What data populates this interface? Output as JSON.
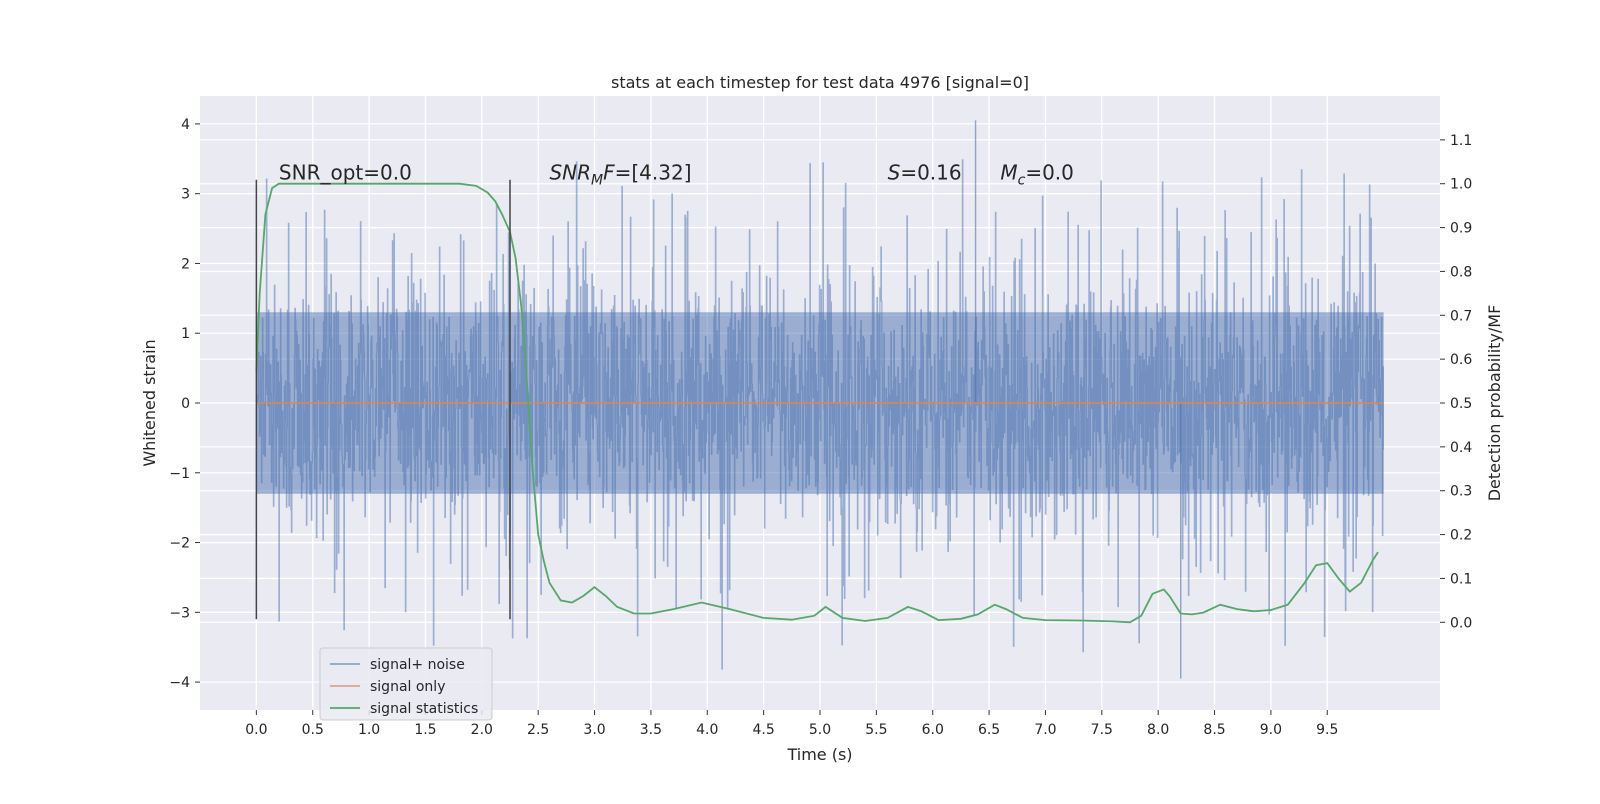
{
  "chart_data": {
    "type": "line",
    "title": "stats at each timestep for test data 4976 [signal=0]",
    "xlabel": "Time (s)",
    "ylabel": "Whitened strain",
    "ylabel_right": "Detection probability/MF",
    "xlim": [
      -0.5,
      10.5
    ],
    "ylim": [
      -4.4,
      4.4
    ],
    "ylim_right": [
      -0.2,
      1.2
    ],
    "x_ticks": [
      0.0,
      0.5,
      1.0,
      1.5,
      2.0,
      2.5,
      3.0,
      3.5,
      4.0,
      4.5,
      5.0,
      5.5,
      6.0,
      6.5,
      7.0,
      7.5,
      8.0,
      8.5,
      9.0,
      9.5
    ],
    "x_tick_labels": [
      "0.0",
      "0.5",
      "1.0",
      "1.5",
      "2.0",
      "2.5",
      "3.0",
      "3.5",
      "4.0",
      "4.5",
      "5.0",
      "5.5",
      "6.0",
      "6.5",
      "7.0",
      "7.5",
      "8.0",
      "8.5",
      "9.0",
      "9.5"
    ],
    "y_ticks": [
      -4,
      -3,
      -2,
      -1,
      0,
      1,
      2,
      3,
      4
    ],
    "y_tick_labels": [
      "−4",
      "−3",
      "−2",
      "−1",
      "0",
      "1",
      "2",
      "3",
      "4"
    ],
    "y_right_ticks": [
      0.0,
      0.1,
      0.2,
      0.3,
      0.4,
      0.5,
      0.6,
      0.7,
      0.8,
      0.9,
      1.0,
      1.1
    ],
    "y_right_tick_labels": [
      "0.0",
      "0.1",
      "0.2",
      "0.3",
      "0.4",
      "0.5",
      "0.6",
      "0.7",
      "0.8",
      "0.9",
      "1.0",
      "1.1"
    ],
    "grid": true,
    "legend_position": "lower-left",
    "series": [
      {
        "name": "signal+ noise",
        "axis": "left",
        "color": "#4c72b0",
        "kind": "noise",
        "x_range": [
          0.0,
          10.0
        ],
        "core_amplitude": 1.3,
        "max_value": 4.05,
        "min_value": -3.95
      },
      {
        "name": "signal only",
        "axis": "left",
        "color": "#dd8452",
        "x": [
          0.0,
          10.0
        ],
        "y": [
          0.0,
          0.0
        ]
      },
      {
        "name": "signal statistics",
        "axis": "right",
        "color": "#55a868",
        "x": [
          0.0,
          0.03,
          0.08,
          0.14,
          0.2,
          0.3,
          0.5,
          1.0,
          1.5,
          1.8,
          1.95,
          2.05,
          2.12,
          2.18,
          2.25,
          2.3,
          2.35,
          2.4,
          2.45,
          2.5,
          2.55,
          2.6,
          2.7,
          2.8,
          2.9,
          3.0,
          3.1,
          3.2,
          3.35,
          3.5,
          3.7,
          3.95,
          4.2,
          4.5,
          4.75,
          4.95,
          5.05,
          5.2,
          5.4,
          5.6,
          5.78,
          5.9,
          6.05,
          6.25,
          6.4,
          6.55,
          6.65,
          6.8,
          7.0,
          7.3,
          7.6,
          7.75,
          7.85,
          7.95,
          8.05,
          8.1,
          8.2,
          8.3,
          8.4,
          8.55,
          8.7,
          8.85,
          9.0,
          9.15,
          9.3,
          9.4,
          9.5,
          9.6,
          9.7,
          9.8,
          9.9,
          9.95
        ],
        "y": [
          0.57,
          0.75,
          0.93,
          0.99,
          1.0,
          1.0,
          1.0,
          1.0,
          1.0,
          1.0,
          0.995,
          0.98,
          0.96,
          0.93,
          0.89,
          0.83,
          0.72,
          0.55,
          0.35,
          0.2,
          0.14,
          0.09,
          0.05,
          0.045,
          0.06,
          0.08,
          0.06,
          0.035,
          0.02,
          0.02,
          0.03,
          0.045,
          0.03,
          0.01,
          0.006,
          0.015,
          0.035,
          0.01,
          0.003,
          0.01,
          0.035,
          0.025,
          0.005,
          0.008,
          0.018,
          0.04,
          0.03,
          0.01,
          0.005,
          0.004,
          0.002,
          0.0,
          0.015,
          0.065,
          0.075,
          0.06,
          0.02,
          0.018,
          0.022,
          0.04,
          0.03,
          0.025,
          0.028,
          0.04,
          0.09,
          0.13,
          0.135,
          0.1,
          0.07,
          0.09,
          0.14,
          0.16
        ]
      }
    ],
    "vertical_markers": [
      {
        "x": 0.0,
        "y_range": [
          -3.1,
          3.2
        ]
      },
      {
        "x": 2.25,
        "y_range": [
          -3.1,
          3.2
        ]
      }
    ],
    "annotations": [
      {
        "prefix": "SNR_opt=0.0",
        "sub": "",
        "suffix": "",
        "x": 0.2,
        "y": 3.2,
        "italic": false
      },
      {
        "prefix": "SNR",
        "sub": "M",
        "suffix": "F=[4.32]",
        "x": 2.6,
        "y": 3.2,
        "italic": true
      },
      {
        "prefix": "S",
        "sub": "",
        "suffix": "=0.16",
        "x": 5.6,
        "y": 3.2,
        "italic": true
      },
      {
        "prefix": "M",
        "sub": "c",
        "suffix": "=0.0",
        "x": 6.6,
        "y": 3.2,
        "italic": true
      }
    ]
  }
}
